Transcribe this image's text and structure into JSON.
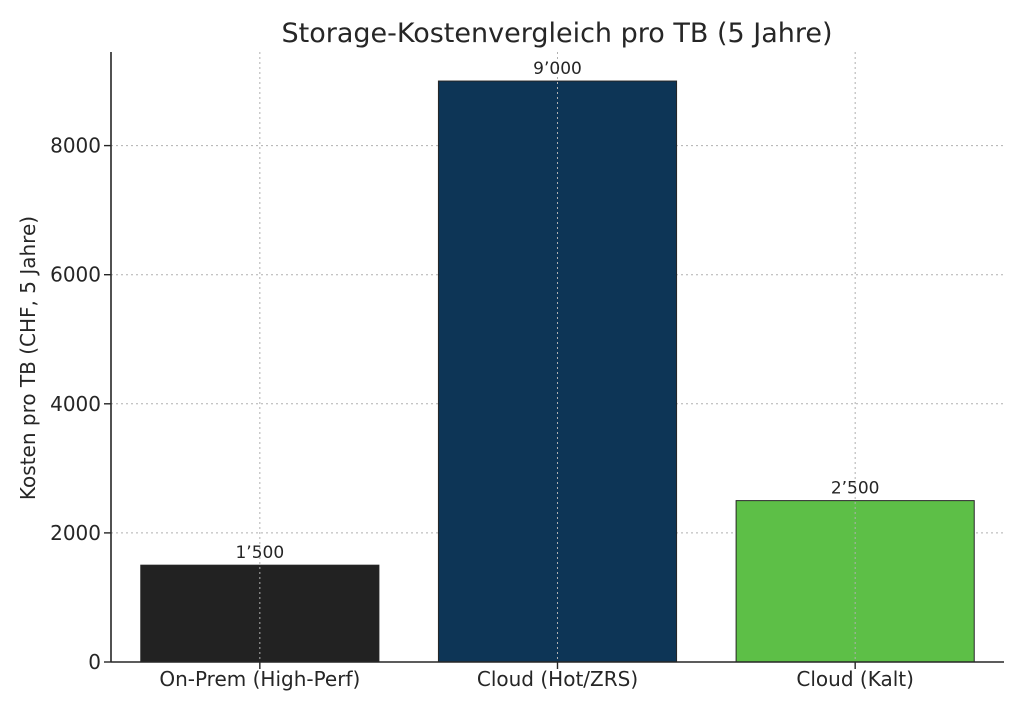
{
  "chart_data": {
    "type": "bar",
    "title": "Storage-Kostenvergleich pro TB (5 Jahre)",
    "xlabel": "",
    "ylabel": "Kosten pro TB (CHF, 5 Jahre)",
    "categories": [
      "On-Prem (High-Perf)",
      "Cloud (Hot/ZRS)",
      "Cloud (Kalt)"
    ],
    "values": [
      1500,
      9000,
      2500
    ],
    "value_labels": [
      "1’500",
      "9’000",
      "2’500"
    ],
    "colors": [
      "#222222",
      "#0d3556",
      "#5dbf47"
    ],
    "ylim": [
      0,
      9450
    ],
    "yticks": [
      0,
      2000,
      4000,
      6000,
      8000
    ],
    "ytick_labels": [
      "0",
      "2000",
      "4000",
      "6000",
      "8000"
    ],
    "grid": true,
    "legend": "none"
  }
}
